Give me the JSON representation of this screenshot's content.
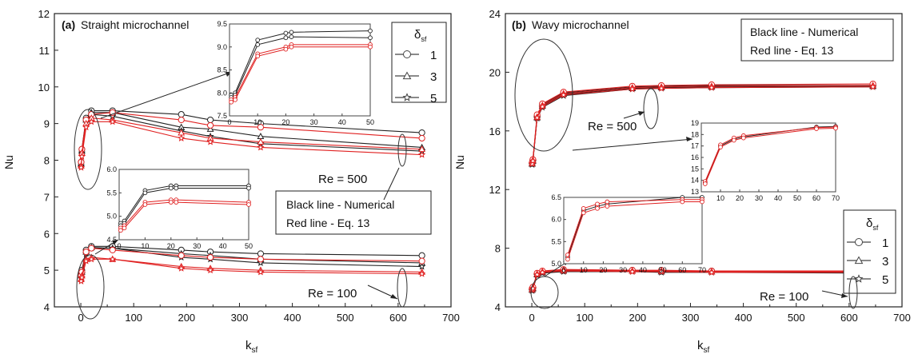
{
  "chart_data": [
    {
      "type": "line",
      "panel_label": "(a)",
      "title": "Straight microchannel",
      "xlabel": "k",
      "xlabel_sub": "sf",
      "ylabel": "Nu",
      "xlim": [
        -50,
        700
      ],
      "ylim": [
        4,
        12
      ],
      "xticks": [
        0,
        100,
        200,
        300,
        400,
        500,
        600,
        700
      ],
      "yticks": [
        4,
        5,
        6,
        7,
        8,
        9,
        10,
        11,
        12
      ],
      "x": [
        0.6,
        2,
        10,
        20,
        60,
        190,
        245,
        340,
        645
      ],
      "legend": {
        "title": "δ",
        "title_sub": "sf",
        "entries": [
          "1",
          "3",
          "5"
        ],
        "markers": [
          "circle",
          "triangle",
          "star"
        ],
        "placement": "top-right"
      },
      "textbox": {
        "line1": "Black line - Numerical",
        "line2": "Red line - Eq. 13"
      },
      "annotations": [
        "Re = 500",
        "Re = 100"
      ],
      "series": [
        {
          "group": "Re=500",
          "delta": "1",
          "source": "numerical",
          "color": "#222222",
          "marker": "circle",
          "values": [
            7.95,
            8.3,
            9.15,
            9.35,
            9.35,
            9.25,
            9.1,
            9.0,
            8.75
          ]
        },
        {
          "group": "Re=500",
          "delta": "3",
          "source": "numerical",
          "color": "#222222",
          "marker": "triangle",
          "values": [
            7.9,
            8.25,
            9.1,
            9.3,
            9.3,
            8.9,
            8.85,
            8.65,
            8.35
          ]
        },
        {
          "group": "Re=500",
          "delta": "5",
          "source": "numerical",
          "color": "#222222",
          "marker": "star",
          "values": [
            7.85,
            8.2,
            9.05,
            9.25,
            9.2,
            8.8,
            8.65,
            8.45,
            8.25
          ]
        },
        {
          "group": "Re=500",
          "delta": "1",
          "source": "eq13",
          "color": "#e02020",
          "marker": "circle",
          "values": [
            7.95,
            8.3,
            9.1,
            9.25,
            9.3,
            9.1,
            8.95,
            8.9,
            8.6
          ]
        },
        {
          "group": "Re=500",
          "delta": "3",
          "source": "eq13",
          "color": "#e02020",
          "marker": "triangle",
          "values": [
            7.85,
            8.2,
            9.0,
            9.15,
            9.1,
            8.75,
            8.6,
            8.5,
            8.3
          ]
        },
        {
          "group": "Re=500",
          "delta": "5",
          "source": "eq13",
          "color": "#e02020",
          "marker": "star",
          "values": [
            7.8,
            8.1,
            8.9,
            9.05,
            9.05,
            8.6,
            8.5,
            8.35,
            8.15
          ]
        },
        {
          "group": "Re=100",
          "delta": "1",
          "source": "numerical",
          "color": "#222222",
          "marker": "circle",
          "values": [
            4.9,
            5.0,
            5.55,
            5.65,
            5.65,
            5.55,
            5.5,
            5.45,
            5.4
          ]
        },
        {
          "group": "Re=100",
          "delta": "3",
          "source": "numerical",
          "color": "#222222",
          "marker": "triangle",
          "values": [
            4.85,
            4.95,
            5.5,
            5.62,
            5.6,
            5.45,
            5.4,
            5.3,
            5.2
          ]
        },
        {
          "group": "Re=100",
          "delta": "5",
          "source": "numerical",
          "color": "#222222",
          "marker": "star",
          "values": [
            4.8,
            4.9,
            5.45,
            5.6,
            5.6,
            5.35,
            5.3,
            5.2,
            5.1
          ]
        },
        {
          "group": "Re=100",
          "delta": "1",
          "source": "eq13",
          "color": "#e02020",
          "marker": "circle",
          "values": [
            4.85,
            4.95,
            5.5,
            5.6,
            5.55,
            5.4,
            5.35,
            5.3,
            5.25
          ]
        },
        {
          "group": "Re=100",
          "delta": "3",
          "source": "eq13",
          "color": "#e02020",
          "marker": "triangle",
          "values": [
            4.75,
            4.85,
            5.3,
            5.35,
            5.3,
            5.1,
            5.05,
            5.0,
            4.95
          ]
        },
        {
          "group": "Re=100",
          "delta": "5",
          "source": "eq13",
          "color": "#e02020",
          "marker": "star",
          "values": [
            4.7,
            4.8,
            5.25,
            5.3,
            5.3,
            5.05,
            5.0,
            4.95,
            4.9
          ]
        }
      ],
      "insets": [
        {
          "name": "inset-re500",
          "xlim": [
            0,
            50
          ],
          "ylim": [
            7.5,
            9.5
          ],
          "xticks": [
            0,
            10,
            20,
            30,
            40,
            50
          ],
          "yticks": [
            7.5,
            8.0,
            8.5,
            9.0,
            9.5
          ],
          "ytick_labels": [
            "7.5",
            "8.0",
            "8.5",
            "9.0",
            "9.5"
          ],
          "x": [
            0.6,
            2,
            10,
            20,
            22,
            50
          ],
          "series": [
            {
              "color": "#222222",
              "values": [
                7.95,
                8.0,
                9.15,
                9.3,
                9.32,
                9.35
              ]
            },
            {
              "color": "#222222",
              "values": [
                7.9,
                7.95,
                9.05,
                9.2,
                9.22,
                9.2
              ]
            },
            {
              "color": "#e02020",
              "values": [
                7.85,
                7.9,
                8.85,
                9.0,
                9.05,
                9.05
              ]
            },
            {
              "color": "#e02020",
              "values": [
                7.8,
                7.85,
                8.8,
                8.95,
                9.0,
                9.0
              ]
            }
          ]
        },
        {
          "name": "inset-re100",
          "xlim": [
            0,
            50
          ],
          "ylim": [
            4.5,
            6.0
          ],
          "xticks": [
            0,
            10,
            20,
            30,
            40,
            50
          ],
          "yticks": [
            4.5,
            5.0,
            5.5,
            6.0
          ],
          "ytick_labels": [
            "4.5",
            "5.0",
            "5.5",
            "6.0"
          ],
          "x": [
            0.6,
            2,
            10,
            20,
            22,
            50
          ],
          "series": [
            {
              "color": "#222222",
              "values": [
                4.85,
                4.9,
                5.55,
                5.65,
                5.65,
                5.65
              ]
            },
            {
              "color": "#222222",
              "values": [
                4.8,
                4.85,
                5.5,
                5.6,
                5.6,
                5.6
              ]
            },
            {
              "color": "#e02020",
              "values": [
                4.75,
                4.8,
                5.3,
                5.35,
                5.35,
                5.3
              ]
            },
            {
              "color": "#e02020",
              "values": [
                4.7,
                4.75,
                5.25,
                5.3,
                5.3,
                5.25
              ]
            }
          ]
        }
      ]
    },
    {
      "type": "line",
      "panel_label": "(b)",
      "title": "Wavy microchannel",
      "xlabel": "k",
      "xlabel_sub": "sf",
      "ylabel": "Nu",
      "xlim": [
        -50,
        700
      ],
      "ylim": [
        4,
        24
      ],
      "xticks": [
        0,
        100,
        200,
        300,
        400,
        500,
        600,
        700
      ],
      "yticks": [
        4,
        8,
        12,
        16,
        20,
        24
      ],
      "x": [
        0.6,
        2,
        10,
        20,
        60,
        190,
        245,
        340,
        645
      ],
      "legend": {
        "title": "δ",
        "title_sub": "sf",
        "entries": [
          "1",
          "3",
          "5"
        ],
        "markers": [
          "circle",
          "triangle",
          "star"
        ],
        "placement": "center-right"
      },
      "textbox": {
        "line1": "Black line - Numerical",
        "line2": "Red line - Eq. 13"
      },
      "annotations": [
        "Re = 500",
        "Re = 100"
      ],
      "series": [
        {
          "group": "Re=500",
          "delta": "1",
          "source": "numerical",
          "color": "#222222",
          "marker": "circle",
          "values": [
            13.8,
            14.0,
            17.0,
            17.8,
            18.6,
            19.0,
            19.05,
            19.1,
            19.1
          ]
        },
        {
          "group": "Re=500",
          "delta": "3",
          "source": "numerical",
          "color": "#222222",
          "marker": "triangle",
          "values": [
            13.75,
            13.95,
            16.9,
            17.7,
            18.5,
            18.9,
            18.95,
            19.0,
            19.05
          ]
        },
        {
          "group": "Re=500",
          "delta": "5",
          "source": "numerical",
          "color": "#222222",
          "marker": "star",
          "values": [
            13.7,
            13.9,
            16.85,
            17.6,
            18.4,
            18.85,
            18.9,
            18.95,
            19.0
          ]
        },
        {
          "group": "Re=500",
          "delta": "1",
          "source": "eq13",
          "color": "#e02020",
          "marker": "circle",
          "values": [
            13.85,
            14.05,
            17.1,
            17.85,
            18.65,
            19.05,
            19.1,
            19.15,
            19.2
          ]
        },
        {
          "group": "Re=500",
          "delta": "3",
          "source": "eq13",
          "color": "#e02020",
          "marker": "triangle",
          "values": [
            13.8,
            14.0,
            16.95,
            17.75,
            18.55,
            18.95,
            19.0,
            19.05,
            19.1
          ]
        },
        {
          "group": "Re=500",
          "delta": "5",
          "source": "eq13",
          "color": "#e02020",
          "marker": "star",
          "values": [
            13.75,
            13.95,
            16.9,
            17.65,
            18.45,
            18.85,
            18.9,
            18.95,
            19.0
          ]
        },
        {
          "group": "Re=100",
          "delta": "1",
          "source": "numerical",
          "color": "#222222",
          "marker": "circle",
          "values": [
            5.2,
            5.3,
            6.25,
            6.4,
            6.5,
            6.5,
            6.45,
            6.45,
            6.4
          ]
        },
        {
          "group": "Re=100",
          "delta": "3",
          "source": "numerical",
          "color": "#222222",
          "marker": "triangle",
          "values": [
            5.15,
            5.25,
            6.2,
            6.35,
            6.45,
            6.45,
            6.4,
            6.4,
            6.35
          ]
        },
        {
          "group": "Re=100",
          "delta": "5",
          "source": "numerical",
          "color": "#222222",
          "marker": "star",
          "values": [
            5.1,
            5.2,
            6.15,
            6.3,
            6.4,
            6.4,
            6.35,
            6.35,
            6.3
          ]
        },
        {
          "group": "Re=100",
          "delta": "1",
          "source": "eq13",
          "color": "#e02020",
          "marker": "circle",
          "values": [
            5.25,
            5.35,
            6.3,
            6.45,
            6.55,
            6.5,
            6.5,
            6.45,
            6.45
          ]
        },
        {
          "group": "Re=100",
          "delta": "3",
          "source": "eq13",
          "color": "#e02020",
          "marker": "triangle",
          "values": [
            5.2,
            5.3,
            6.25,
            6.4,
            6.5,
            6.45,
            6.45,
            6.4,
            6.4
          ]
        },
        {
          "group": "Re=100",
          "delta": "5",
          "source": "eq13",
          "color": "#e02020",
          "marker": "star",
          "values": [
            5.15,
            5.25,
            6.2,
            6.35,
            6.45,
            6.4,
            6.4,
            6.35,
            6.35
          ]
        }
      ],
      "insets": [
        {
          "name": "inset-re500",
          "xlim": [
            0,
            70
          ],
          "ylim": [
            13,
            19
          ],
          "xticks": [
            0,
            10,
            20,
            30,
            40,
            50,
            60,
            70
          ],
          "yticks": [
            13,
            14,
            15,
            16,
            17,
            18,
            19
          ],
          "ytick_labels": [
            "13",
            "14",
            "15",
            "16",
            "17",
            "18",
            "19"
          ],
          "x": [
            2,
            10,
            17,
            22,
            60,
            70
          ],
          "series": [
            {
              "color": "#222222",
              "values": [
                13.8,
                17.0,
                17.6,
                17.8,
                18.65,
                18.7
              ]
            },
            {
              "color": "#e02020",
              "values": [
                13.9,
                17.1,
                17.7,
                17.9,
                18.6,
                18.65
              ]
            },
            {
              "color": "#e02020",
              "values": [
                13.7,
                16.9,
                17.5,
                17.7,
                18.5,
                18.55
              ]
            }
          ]
        },
        {
          "name": "inset-re100",
          "xlim": [
            0,
            70
          ],
          "ylim": [
            5.0,
            6.5
          ],
          "xticks": [
            0,
            10,
            20,
            30,
            40,
            50,
            60,
            70
          ],
          "yticks": [
            5.0,
            5.5,
            6.0,
            6.5
          ],
          "ytick_labels": [
            "5.0",
            "5.5",
            "6.0",
            "6.5"
          ],
          "x": [
            2,
            10,
            17,
            22,
            60,
            70
          ],
          "series": [
            {
              "color": "#222222",
              "values": [
                5.15,
                6.2,
                6.3,
                6.35,
                6.5,
                6.5
              ]
            },
            {
              "color": "#e02020",
              "values": [
                5.2,
                6.25,
                6.35,
                6.4,
                6.45,
                6.45
              ]
            },
            {
              "color": "#e02020",
              "values": [
                5.1,
                6.15,
                6.25,
                6.3,
                6.4,
                6.4
              ]
            }
          ]
        }
      ]
    }
  ]
}
